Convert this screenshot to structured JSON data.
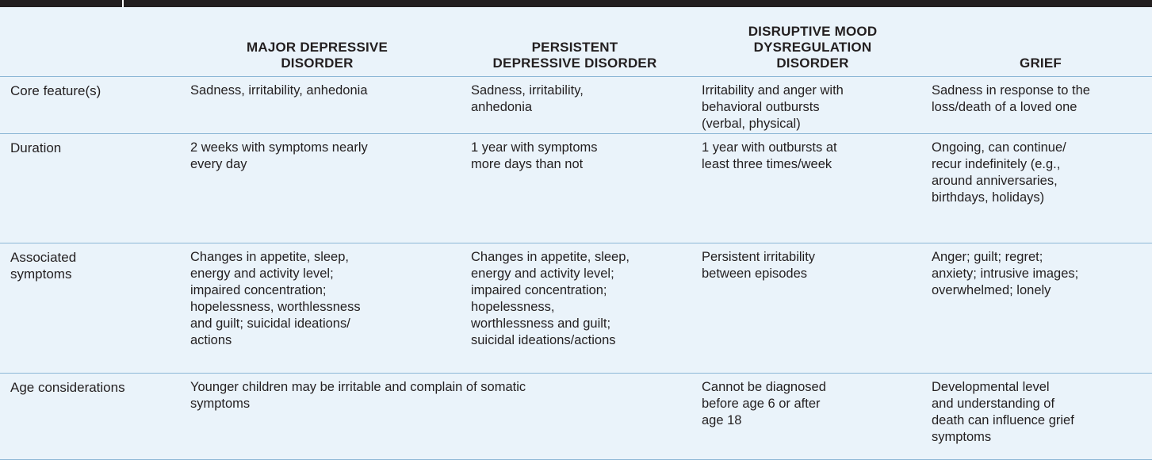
{
  "table": {
    "headers": [
      "MAJOR DEPRESSIVE\nDISORDER",
      "PERSISTENT\nDEPRESSIVE DISORDER",
      "DISRUPTIVE MOOD\nDYSREGULATION\nDISORDER",
      "GRIEF"
    ],
    "rows": [
      {
        "label": "Core feature(s)",
        "cells": [
          "Sadness, irritability, anhedonia",
          "Sadness, irritability,\n  anhedonia",
          "Irritability and anger with\n  behavioral outbursts\n  (verbal, physical)",
          "Sadness in response to the\n  loss/death of a loved one"
        ]
      },
      {
        "label": "Duration",
        "cells": [
          "2 weeks with symptoms nearly\n  every day",
          "1 year with symptoms\n  more days than not",
          "1 year with outbursts at\n  least three times/week",
          "Ongoing, can continue/\n  recur indefinitely (e.g.,\n  around anniversaries,\n  birthdays, holidays)"
        ]
      },
      {
        "label": "Associated\n  symptoms",
        "cells": [
          "Changes in appetite, sleep,\n  energy and activity level;\n  impaired concentration;\n  hopelessness, worthlessness\n  and guilt; suicidal ideations/\n  actions",
          "Changes in appetite, sleep,\n  energy and activity level;\n  impaired concentration;\n  hopelessness,\n  worthlessness and guilt;\n  suicidal ideations/actions",
          "Persistent irritability\n  between episodes",
          "Anger; guilt; regret;\n  anxiety; intrusive images;\n  overwhelmed; lonely"
        ]
      },
      {
        "label": "Age considerations",
        "merged": "Younger children may be irritable and complain of somatic\n  symptoms",
        "cells": [
          "Cannot be diagnosed\n  before age 6 or after\n  age 18",
          "Developmental level\n  and understanding of\n  death can influence grief\n  symptoms"
        ]
      }
    ]
  }
}
